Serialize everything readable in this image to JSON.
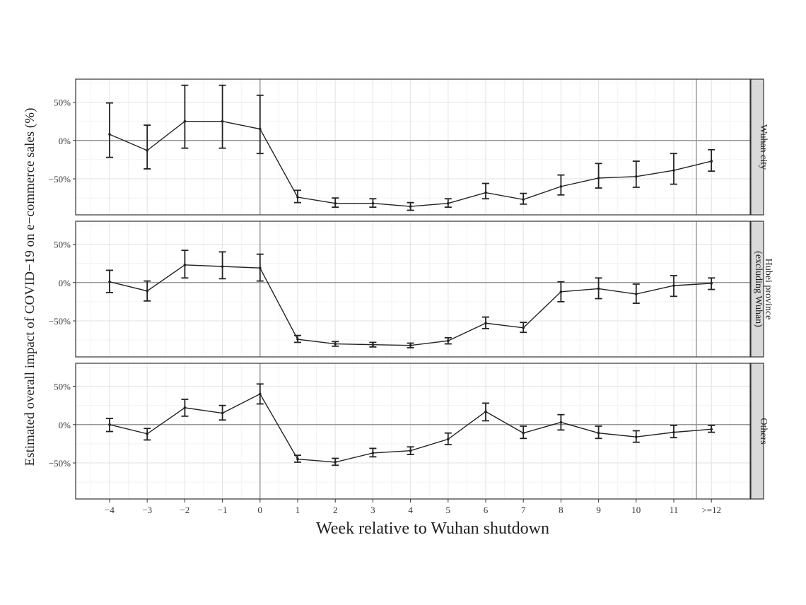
{
  "chart_data": {
    "type": "line",
    "xlabel": "Week relative to Wuhan shutdown",
    "ylabel": "Estimated overall impact of COVID−19 on e−commerce sales (%)",
    "x_tick_labels": [
      "−4",
      "−3",
      "−2",
      "−1",
      "0",
      "1",
      "2",
      "3",
      "4",
      "5",
      "6",
      "7",
      "8",
      "9",
      "10",
      "11",
      ">=12"
    ],
    "y_ticks": [
      50,
      0,
      -50
    ],
    "y_tick_labels": [
      "50%",
      "0%",
      "−50%"
    ],
    "ylim": [
      -97,
      80
    ],
    "reference_lines": {
      "horizontal_y": 0,
      "vertical_x_index": [
        4,
        15
      ]
    },
    "grid": true,
    "facets": [
      {
        "label_lines": [
          "Wuhan city"
        ],
        "points": [
          {
            "y": 8,
            "lo": -22,
            "hi": 49
          },
          {
            "y": -13,
            "lo": -37,
            "hi": 20
          },
          {
            "y": 25,
            "lo": -10,
            "hi": 72
          },
          {
            "y": 25,
            "lo": -10,
            "hi": 72
          },
          {
            "y": 15,
            "lo": -17,
            "hi": 59
          },
          {
            "y": -74,
            "lo": -81,
            "hi": -65
          },
          {
            "y": -82,
            "lo": -87,
            "hi": -75
          },
          {
            "y": -82,
            "lo": -87,
            "hi": -76
          },
          {
            "y": -86,
            "lo": -91,
            "hi": -81
          },
          {
            "y": -82,
            "lo": -87,
            "hi": -76
          },
          {
            "y": -68,
            "lo": -76,
            "hi": -56
          },
          {
            "y": -77,
            "lo": -83,
            "hi": -69
          },
          {
            "y": -60,
            "lo": -71,
            "hi": -45
          },
          {
            "y": -49,
            "lo": -62,
            "hi": -30
          },
          {
            "y": -47,
            "lo": -61,
            "hi": -27
          },
          {
            "y": -39,
            "lo": -57,
            "hi": -17
          },
          {
            "y": -27,
            "lo": -40,
            "hi": -12
          }
        ]
      },
      {
        "label_lines": [
          "Hubei province",
          "(excluding Wuhan)"
        ],
        "points": [
          {
            "y": 1,
            "lo": -13,
            "hi": 16
          },
          {
            "y": -11,
            "lo": -24,
            "hi": 2
          },
          {
            "y": 23,
            "lo": 6,
            "hi": 42
          },
          {
            "y": 21,
            "lo": 5,
            "hi": 40
          },
          {
            "y": 19,
            "lo": 2,
            "hi": 37
          },
          {
            "y": -74,
            "lo": -78,
            "hi": -69
          },
          {
            "y": -80,
            "lo": -83,
            "hi": -77
          },
          {
            "y": -81,
            "lo": -84,
            "hi": -78
          },
          {
            "y": -82,
            "lo": -85,
            "hi": -79
          },
          {
            "y": -76,
            "lo": -80,
            "hi": -72
          },
          {
            "y": -53,
            "lo": -60,
            "hi": -45
          },
          {
            "y": -59,
            "lo": -65,
            "hi": -52
          },
          {
            "y": -12,
            "lo": -25,
            "hi": 1
          },
          {
            "y": -8,
            "lo": -21,
            "hi": 6
          },
          {
            "y": -15,
            "lo": -27,
            "hi": -2
          },
          {
            "y": -4,
            "lo": -18,
            "hi": 9
          },
          {
            "y": -1,
            "lo": -9,
            "hi": 6
          }
        ]
      },
      {
        "label_lines": [
          "Others"
        ],
        "points": [
          {
            "y": 0,
            "lo": -9,
            "hi": 8
          },
          {
            "y": -12,
            "lo": -20,
            "hi": -5
          },
          {
            "y": 22,
            "lo": 11,
            "hi": 33
          },
          {
            "y": 15,
            "lo": 6,
            "hi": 25
          },
          {
            "y": 40,
            "lo": 27,
            "hi": 53
          },
          {
            "y": -45,
            "lo": -49,
            "hi": -40
          },
          {
            "y": -49,
            "lo": -53,
            "hi": -44
          },
          {
            "y": -37,
            "lo": -42,
            "hi": -31
          },
          {
            "y": -34,
            "lo": -39,
            "hi": -29
          },
          {
            "y": -19,
            "lo": -26,
            "hi": -11
          },
          {
            "y": 17,
            "lo": 5,
            "hi": 28
          },
          {
            "y": -11,
            "lo": -18,
            "hi": -2
          },
          {
            "y": 3,
            "lo": -7,
            "hi": 13
          },
          {
            "y": -11,
            "lo": -18,
            "hi": -2
          },
          {
            "y": -16,
            "lo": -23,
            "hi": -8
          },
          {
            "y": -10,
            "lo": -17,
            "hi": -1
          },
          {
            "y": -6,
            "lo": -10,
            "hi": -1
          }
        ]
      }
    ]
  }
}
